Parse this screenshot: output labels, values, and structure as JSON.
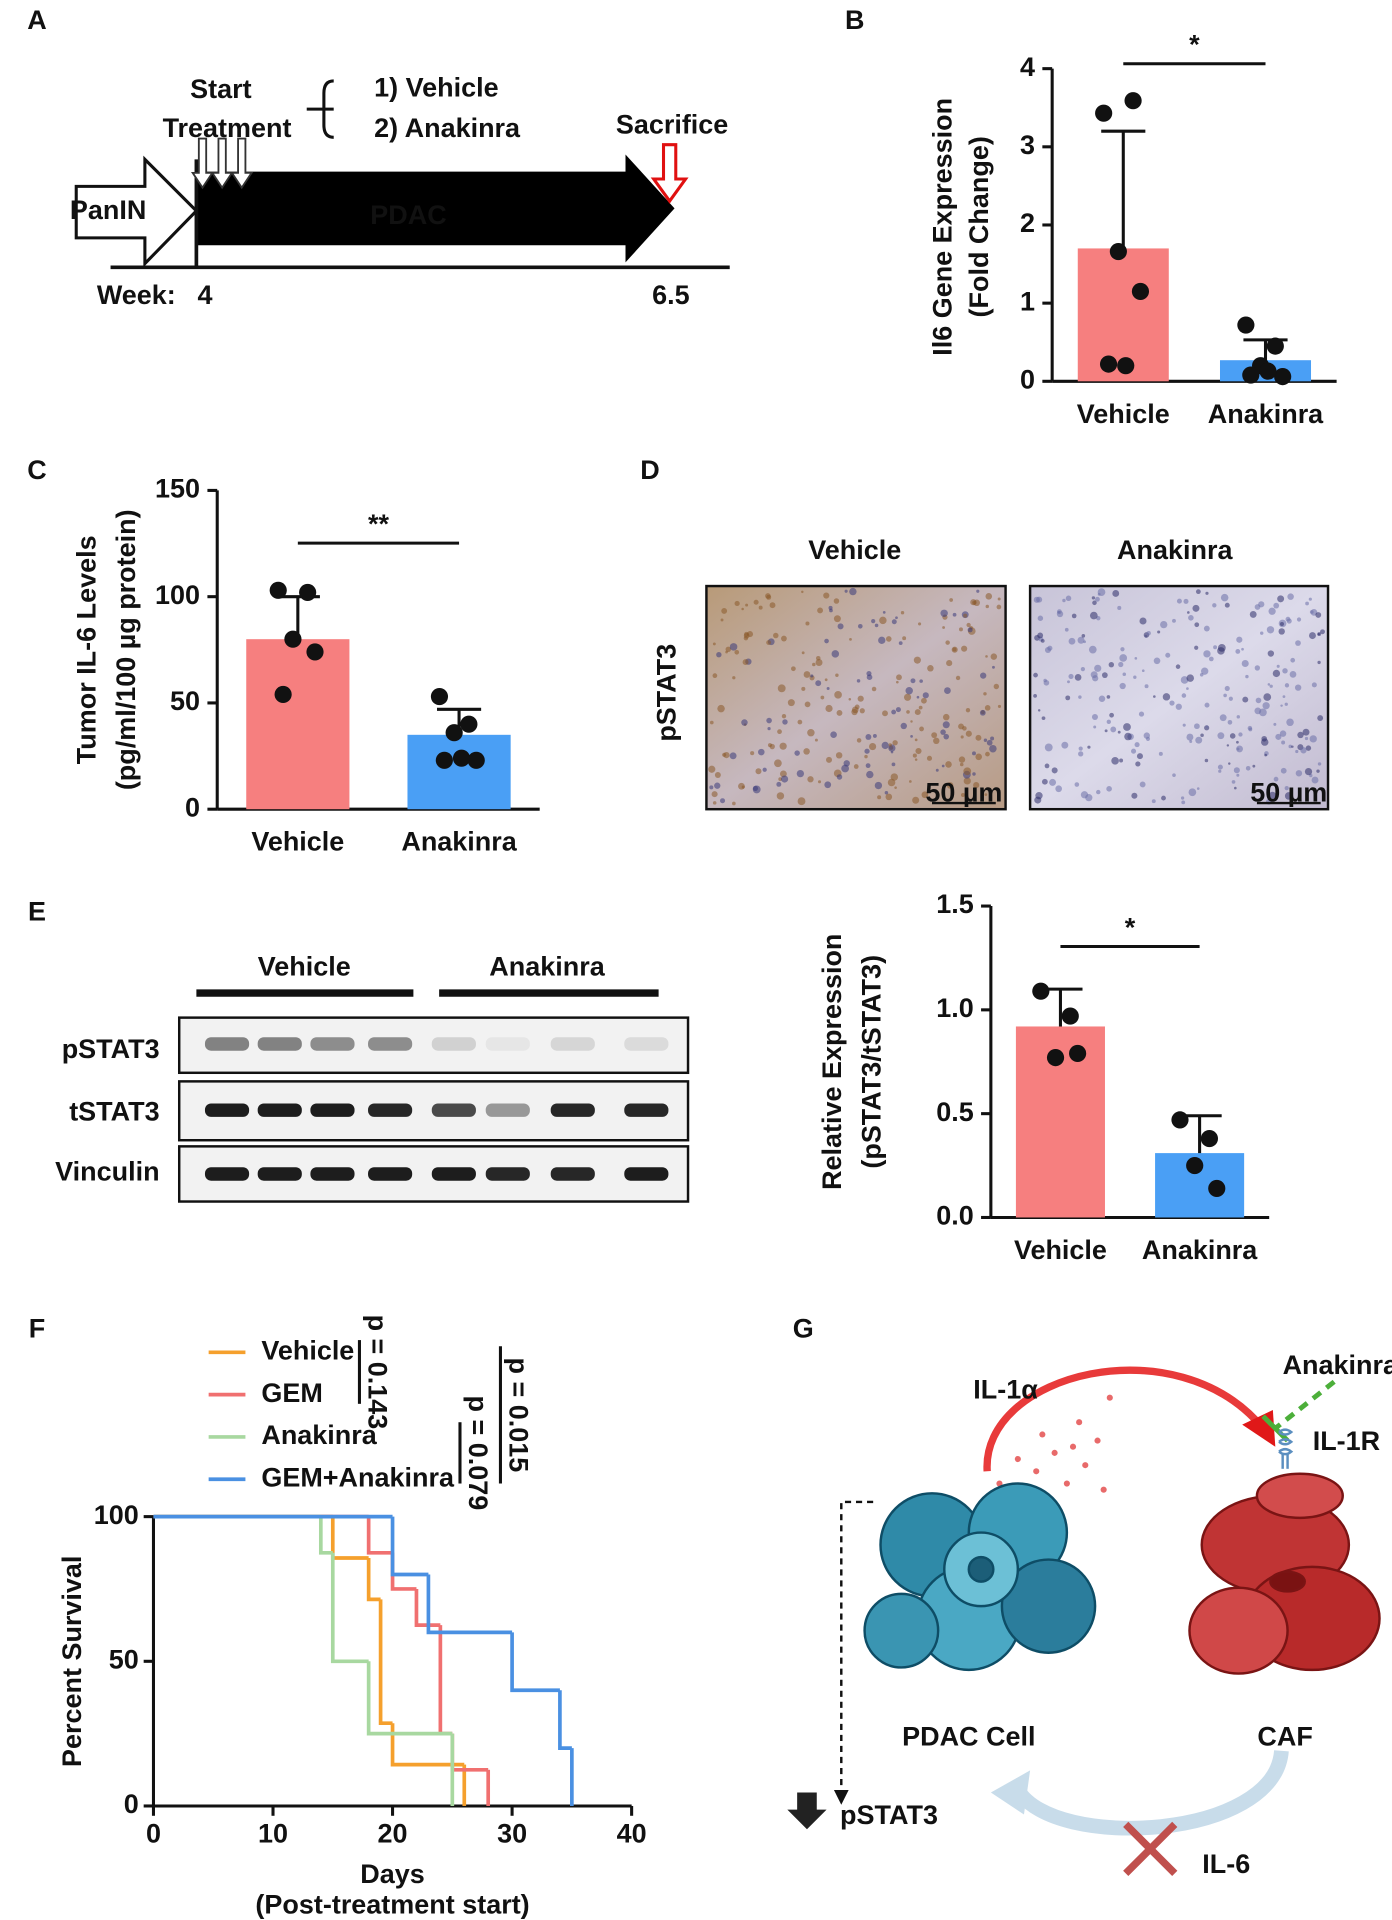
{
  "panel_labels": [
    "A",
    "B",
    "C",
    "D",
    "E",
    "F",
    "G"
  ],
  "timeline": {
    "start_label": [
      "Start",
      "Treatment"
    ],
    "arms": [
      "1) Vehicle",
      "2) Anakinra"
    ],
    "sacrifice": "Sacrifice",
    "panin": "PanIN",
    "pdac": "PDAC",
    "week_label": "Week:",
    "weeks": [
      4,
      6.5
    ]
  },
  "ihc": {
    "columns": [
      "Vehicle",
      "Anakinra"
    ],
    "row": "pSTAT3",
    "scale_bar": "50 µm"
  },
  "western_blot": {
    "groups": [
      "Vehicle",
      "Anakinra"
    ],
    "rows": [
      "pSTAT3",
      "tSTAT3",
      "Vinculin"
    ]
  },
  "model": {
    "il1a": "IL-1α",
    "anakinra": "Anakinra",
    "il1r": "IL-1R",
    "pdac_cell": "PDAC Cell",
    "caf": "CAF",
    "pstat3": "pSTAT3",
    "il6": "IL-6"
  },
  "chart_data": [
    {
      "type": "bar",
      "y_label": [
        "Il6 Gene Expression",
        "(Fold Change)"
      ],
      "categories": [
        "Vehicle",
        "Anakinra"
      ],
      "values": [
        1.7,
        0.27
      ],
      "errors": [
        1.5,
        0.26
      ],
      "points": [
        [
          3.43,
          3.59,
          1.66,
          1.15,
          0.22,
          0.2
        ],
        [
          0.72,
          0.45,
          0.2,
          0.06,
          0.08,
          0.13
        ]
      ],
      "colors": [
        "#f67f7f",
        "#4a9ff5"
      ],
      "significance": "*",
      "ylim": [
        0,
        4
      ],
      "yticks": [
        0,
        1,
        2,
        3,
        4
      ]
    },
    {
      "type": "bar",
      "y_label": [
        "Tumor IL-6  Levels",
        "(pg/ml/100 µg protein)"
      ],
      "categories": [
        "Vehicle",
        "Anakinra"
      ],
      "values": [
        80,
        35
      ],
      "errors": [
        20,
        12
      ],
      "points": [
        [
          103,
          102,
          80,
          74,
          54
        ],
        [
          53,
          40,
          36,
          23,
          23,
          24
        ]
      ],
      "colors": [
        "#f67f7f",
        "#4a9ff5"
      ],
      "significance": "**",
      "ylim": [
        0,
        150
      ],
      "yticks": [
        0,
        50,
        100,
        150
      ]
    },
    {
      "type": "bar",
      "y_label": [
        "Relative Expression",
        "(pSTAT3/tSTAT3)"
      ],
      "categories": [
        "Vehicle",
        "Anakinra"
      ],
      "values": [
        0.92,
        0.31
      ],
      "errors": [
        0.18,
        0.18
      ],
      "points": [
        [
          1.09,
          0.97,
          0.77,
          0.79
        ],
        [
          0.47,
          0.38,
          0.25,
          0.14
        ]
      ],
      "colors": [
        "#f67f7f",
        "#4a9ff5"
      ],
      "significance": "*",
      "ylim": [
        0,
        1.5
      ],
      "yticks": [
        {
          "value": 0,
          "label": "0.0"
        },
        {
          "value": 0.5,
          "label": "0.5"
        },
        {
          "value": 1,
          "label": "1.0"
        },
        {
          "value": 1.5,
          "label": "1.5"
        }
      ]
    },
    {
      "type": "step",
      "x_label": "Days",
      "x_sublabel": "(Post-treatment start)",
      "y_label": "Percent Survival",
      "series": [
        {
          "name": "Vehicle",
          "color": "#f5a02d",
          "x": [
            0,
            15,
            18,
            19,
            20,
            26
          ],
          "values": [
            100,
            85.7,
            71.4,
            28.6,
            14.3,
            0
          ]
        },
        {
          "name": "GEM",
          "color": "#f07070",
          "x": [
            0,
            18,
            20,
            22,
            24,
            25,
            28
          ],
          "values": [
            100,
            87.5,
            75,
            62.5,
            25,
            12.5,
            0
          ]
        },
        {
          "name": "Anakinra",
          "color": "#a8d8a0",
          "x": [
            0,
            14,
            15,
            18,
            25
          ],
          "values": [
            100,
            87.5,
            50,
            25,
            0
          ]
        },
        {
          "name": "GEM+Anakinra",
          "color": "#4a90e2",
          "x": [
            0,
            20,
            23,
            30,
            34,
            35
          ],
          "values": [
            100,
            80,
            60,
            40,
            20,
            0
          ]
        }
      ],
      "annotations": [
        "p = 0.143",
        "p = 0.079",
        "p = 0.015"
      ],
      "xlim": [
        0,
        40
      ],
      "xticks": [
        0,
        10,
        20,
        30,
        40
      ],
      "ylim": [
        0,
        100
      ],
      "yticks": [
        0,
        50,
        100
      ]
    }
  ]
}
